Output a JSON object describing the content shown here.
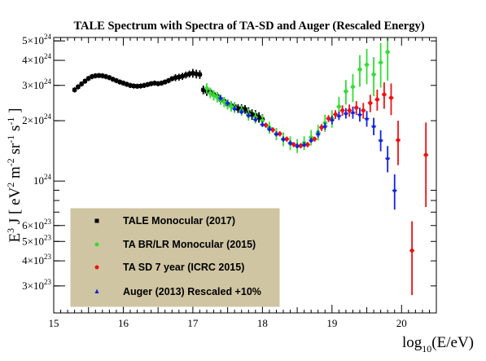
{
  "chart_data": {
    "type": "scatter",
    "title": "TALE Spectrum with Spectra of TA-SD and Auger (Rescaled Energy)",
    "xlabel": "log10(E/eV)",
    "ylabel": "E3 J [ eV2 m-2 sr-1 s-1 ]",
    "xlim": [
      15,
      20.5
    ],
    "ylim": [
      2.2e+23,
      5.2e+24
    ],
    "yscale": "log",
    "legend_position": "bottom-left",
    "x_ticks": [
      "15",
      "16",
      "17",
      "18",
      "19",
      "20"
    ],
    "y_ticks": [
      {
        "value": 5e+24,
        "mant": "5",
        "exp": "24"
      },
      {
        "value": 4e+24,
        "mant": "4",
        "exp": "24"
      },
      {
        "value": 3e+24,
        "mant": "3",
        "exp": "24"
      },
      {
        "value": 2e+24,
        "mant": "2",
        "exp": "24"
      },
      {
        "value": 1e+24,
        "mant": "",
        "exp": "24"
      },
      {
        "value": 6e+23,
        "mant": "6",
        "exp": "23"
      },
      {
        "value": 5e+23,
        "mant": "5",
        "exp": "23"
      },
      {
        "value": 4e+23,
        "mant": "4",
        "exp": "23"
      },
      {
        "value": 3e+23,
        "mant": "3",
        "exp": "23"
      }
    ],
    "series": [
      {
        "name": "TALE Monocular (2017)",
        "color": "#000000",
        "marker": "square",
        "points": [
          [
            15.3,
            2.85e+24,
            0.03
          ],
          [
            15.35,
            2.95e+24,
            0.03
          ],
          [
            15.4,
            3.05e+24,
            0.03
          ],
          [
            15.45,
            3.15e+24,
            0.03
          ],
          [
            15.5,
            3.25e+24,
            0.03
          ],
          [
            15.55,
            3.32e+24,
            0.03
          ],
          [
            15.6,
            3.35e+24,
            0.03
          ],
          [
            15.65,
            3.36e+24,
            0.03
          ],
          [
            15.7,
            3.35e+24,
            0.03
          ],
          [
            15.75,
            3.32e+24,
            0.03
          ],
          [
            15.8,
            3.28e+24,
            0.03
          ],
          [
            15.85,
            3.22e+24,
            0.03
          ],
          [
            15.9,
            3.17e+24,
            0.03
          ],
          [
            15.95,
            3.12e+24,
            0.03
          ],
          [
            16.0,
            3.08e+24,
            0.03
          ],
          [
            16.05,
            3.04e+24,
            0.03
          ],
          [
            16.1,
            3e+24,
            0.03
          ],
          [
            16.15,
            2.98e+24,
            0.03
          ],
          [
            16.2,
            2.97e+24,
            0.03
          ],
          [
            16.25,
            2.98e+24,
            0.03
          ],
          [
            16.3,
            3e+24,
            0.03
          ],
          [
            16.35,
            3.03e+24,
            0.03
          ],
          [
            16.4,
            3.06e+24,
            0.03
          ],
          [
            16.45,
            3.08e+24,
            0.03
          ],
          [
            16.5,
            3.06e+24,
            0.03
          ],
          [
            16.55,
            3.08e+24,
            0.03
          ],
          [
            16.6,
            3.12e+24,
            0.03
          ],
          [
            16.65,
            3.17e+24,
            0.03
          ],
          [
            16.7,
            3.24e+24,
            0.03
          ],
          [
            16.75,
            3.28e+24,
            0.04
          ],
          [
            16.8,
            3.3e+24,
            0.04
          ],
          [
            16.85,
            3.33e+24,
            0.04
          ],
          [
            16.9,
            3.38e+24,
            0.04
          ],
          [
            16.95,
            3.42e+24,
            0.04
          ],
          [
            17.0,
            3.45e+24,
            0.05
          ],
          [
            17.05,
            3.42e+24,
            0.05
          ],
          [
            17.1,
            3.4e+24,
            0.05
          ],
          [
            17.15,
            2.85e+24,
            0.05
          ],
          [
            17.2,
            2.8e+24,
            0.05
          ],
          [
            17.25,
            2.78e+24,
            0.05
          ],
          [
            17.3,
            2.7e+24,
            0.05
          ],
          [
            17.35,
            2.65e+24,
            0.05
          ],
          [
            17.4,
            2.55e+24,
            0.05
          ],
          [
            17.45,
            2.5e+24,
            0.05
          ],
          [
            17.5,
            2.42e+24,
            0.05
          ],
          [
            17.55,
            2.38e+24,
            0.05
          ],
          [
            17.6,
            2.35e+24,
            0.05
          ],
          [
            17.65,
            2.3e+24,
            0.05
          ],
          [
            17.7,
            2.3e+24,
            0.05
          ],
          [
            17.75,
            2.28e+24,
            0.05
          ],
          [
            17.8,
            2.2e+24,
            0.06
          ],
          [
            17.85,
            2.15e+24,
            0.06
          ],
          [
            17.9,
            2.13e+24,
            0.06
          ],
          [
            17.95,
            2.08e+24,
            0.06
          ],
          [
            18.0,
            2.03e+24,
            0.06
          ]
        ]
      },
      {
        "name": "TA BR/LR Monocular (2015)",
        "color": "#33dd33",
        "marker": "circle",
        "points": [
          [
            17.2,
            2.9e+24,
            0.06
          ],
          [
            17.25,
            2.75e+24,
            0.06
          ],
          [
            17.3,
            2.68e+24,
            0.06
          ],
          [
            17.35,
            2.62e+24,
            0.06
          ],
          [
            17.4,
            2.55e+24,
            0.06
          ],
          [
            17.45,
            2.48e+24,
            0.06
          ],
          [
            17.5,
            2.42e+24,
            0.06
          ],
          [
            17.55,
            2.36e+24,
            0.06
          ],
          [
            17.6,
            2.32e+24,
            0.06
          ],
          [
            17.7,
            2.25e+24,
            0.06
          ],
          [
            17.8,
            2.15e+24,
            0.07
          ],
          [
            17.9,
            2.08e+24,
            0.07
          ],
          [
            18.0,
            2e+24,
            0.07
          ],
          [
            18.1,
            1.85e+24,
            0.07
          ],
          [
            18.2,
            1.72e+24,
            0.07
          ],
          [
            18.3,
            1.62e+24,
            0.08
          ],
          [
            18.4,
            1.55e+24,
            0.08
          ],
          [
            18.5,
            1.5e+24,
            0.08
          ],
          [
            18.6,
            1.55e+24,
            0.08
          ],
          [
            18.7,
            1.65e+24,
            0.09
          ],
          [
            18.8,
            1.75e+24,
            0.09
          ],
          [
            18.9,
            1.95e+24,
            0.1
          ],
          [
            19.0,
            2.05e+24,
            0.1
          ],
          [
            19.1,
            2.35e+24,
            0.12
          ],
          [
            19.2,
            2.8e+24,
            0.14
          ],
          [
            19.3,
            2.95e+24,
            0.16
          ],
          [
            19.4,
            3.6e+24,
            0.18
          ],
          [
            19.5,
            3.8e+24,
            0.2
          ],
          [
            19.6,
            3.4e+24,
            0.22
          ],
          [
            19.7,
            3.9e+24,
            0.25
          ],
          [
            19.8,
            4.4e+24,
            0.28
          ]
        ]
      },
      {
        "name": "TA SD 7 year (ICRC 2015)",
        "color": "#ee1111",
        "marker": "circle",
        "points": [
          [
            18.05,
            1.9e+24,
            0.03
          ],
          [
            18.15,
            1.8e+24,
            0.03
          ],
          [
            18.25,
            1.72e+24,
            0.03
          ],
          [
            18.35,
            1.62e+24,
            0.03
          ],
          [
            18.45,
            1.52e+24,
            0.03
          ],
          [
            18.55,
            1.5e+24,
            0.03
          ],
          [
            18.65,
            1.52e+24,
            0.03
          ],
          [
            18.75,
            1.62e+24,
            0.03
          ],
          [
            18.85,
            1.85e+24,
            0.04
          ],
          [
            18.95,
            2.05e+24,
            0.04
          ],
          [
            19.05,
            2.15e+24,
            0.05
          ],
          [
            19.15,
            2.25e+24,
            0.06
          ],
          [
            19.25,
            2.25e+24,
            0.07
          ],
          [
            19.35,
            2.32e+24,
            0.08
          ],
          [
            19.45,
            2.25e+24,
            0.09
          ],
          [
            19.55,
            2.45e+24,
            0.1
          ],
          [
            19.65,
            2.55e+24,
            0.12
          ],
          [
            19.75,
            2.7e+24,
            0.15
          ],
          [
            19.85,
            2.6e+24,
            0.18
          ],
          [
            19.95,
            1.6e+24,
            0.25
          ],
          [
            20.15,
            4.5e+23,
            0.4
          ],
          [
            20.35,
            1.35e+24,
            0.45
          ]
        ]
      },
      {
        "name": "Auger (2013) Rescaled +10%",
        "color": "#1122dd",
        "marker": "triangle",
        "points": [
          [
            17.4,
            2.6e+24,
            0.03
          ],
          [
            17.5,
            2.45e+24,
            0.03
          ],
          [
            17.6,
            2.3e+24,
            0.03
          ],
          [
            17.7,
            2.22e+24,
            0.03
          ],
          [
            17.8,
            2.13e+24,
            0.03
          ],
          [
            17.9,
            2.03e+24,
            0.03
          ],
          [
            18.0,
            1.92e+24,
            0.03
          ],
          [
            18.1,
            1.82e+24,
            0.03
          ],
          [
            18.2,
            1.72e+24,
            0.03
          ],
          [
            18.3,
            1.62e+24,
            0.03
          ],
          [
            18.4,
            1.55e+24,
            0.03
          ],
          [
            18.5,
            1.5e+24,
            0.03
          ],
          [
            18.6,
            1.52e+24,
            0.03
          ],
          [
            18.7,
            1.6e+24,
            0.03
          ],
          [
            18.8,
            1.72e+24,
            0.04
          ],
          [
            18.9,
            1.88e+24,
            0.04
          ],
          [
            19.0,
            2.02e+24,
            0.05
          ],
          [
            19.1,
            2.12e+24,
            0.05
          ],
          [
            19.2,
            2.18e+24,
            0.06
          ],
          [
            19.3,
            2.2e+24,
            0.07
          ],
          [
            19.4,
            2.15e+24,
            0.08
          ],
          [
            19.5,
            2.05e+24,
            0.09
          ],
          [
            19.6,
            1.88e+24,
            0.1
          ],
          [
            19.7,
            1.6e+24,
            0.12
          ],
          [
            19.8,
            1.3e+24,
            0.15
          ],
          [
            19.9,
            9e+23,
            0.2
          ]
        ]
      }
    ]
  }
}
